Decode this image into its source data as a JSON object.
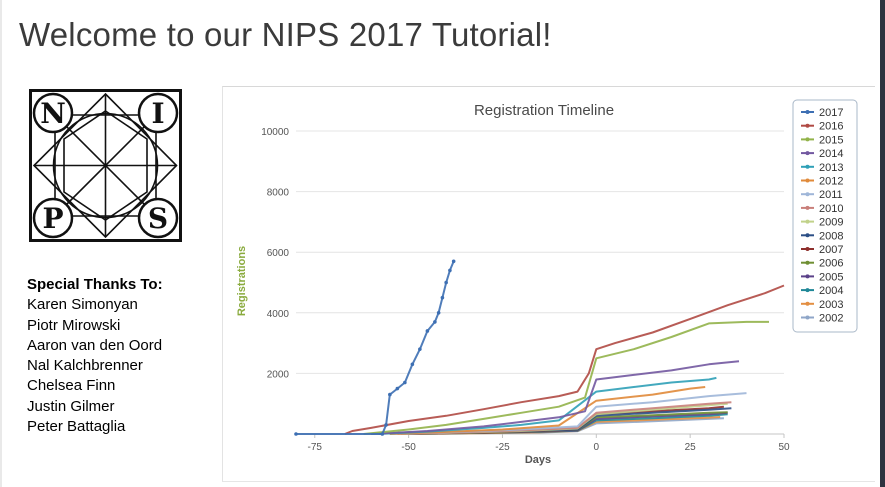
{
  "slide": {
    "title": "Welcome to our NIPS 2017 Tutorial!"
  },
  "logo": {
    "letters": [
      "N",
      "I",
      "P",
      "S"
    ]
  },
  "thanks": {
    "heading": "Special Thanks To:",
    "names": [
      "Karen Simonyan",
      "Piotr Mirowski",
      "Aaron van den Oord",
      "Nal Kalchbrenner",
      "Chelsea Finn",
      "Justin Gilmer",
      "Peter Battaglia"
    ]
  },
  "chart_data": {
    "type": "line",
    "title": "Registration Timeline",
    "xlabel": "Days",
    "ylabel": "Registrations",
    "xlim": [
      -80,
      50
    ],
    "ylim": [
      0,
      10000
    ],
    "xticks": [
      -75,
      -50,
      -25,
      0,
      25,
      50
    ],
    "yticks": [
      2000,
      4000,
      6000,
      8000,
      10000
    ],
    "legend_position": "right",
    "grid": "horizontal",
    "series": [
      {
        "name": "2017",
        "color": "#3d6fb3",
        "points": [
          [
            -80,
            0
          ],
          [
            -57,
            0
          ],
          [
            -56,
            300
          ],
          [
            -55,
            1300
          ],
          [
            -53,
            1500
          ],
          [
            -51,
            1700
          ],
          [
            -49,
            2300
          ],
          [
            -47,
            2800
          ],
          [
            -45,
            3400
          ],
          [
            -43,
            3700
          ],
          [
            -42,
            4000
          ],
          [
            -41,
            4500
          ],
          [
            -40,
            5000
          ],
          [
            -39,
            5400
          ],
          [
            -38,
            5700
          ]
        ]
      },
      {
        "name": "2016",
        "color": "#b04a44",
        "points": [
          [
            -67,
            0
          ],
          [
            -65,
            100
          ],
          [
            -60,
            200
          ],
          [
            -50,
            430
          ],
          [
            -40,
            600
          ],
          [
            -30,
            820
          ],
          [
            -20,
            1050
          ],
          [
            -10,
            1250
          ],
          [
            -5,
            1400
          ],
          [
            -2,
            2000
          ],
          [
            0,
            2800
          ],
          [
            5,
            3000
          ],
          [
            15,
            3350
          ],
          [
            25,
            3800
          ],
          [
            35,
            4250
          ],
          [
            45,
            4650
          ],
          [
            50,
            4900
          ]
        ]
      },
      {
        "name": "2015",
        "color": "#92b34a",
        "points": [
          [
            -62,
            0
          ],
          [
            -50,
            150
          ],
          [
            -40,
            300
          ],
          [
            -30,
            500
          ],
          [
            -20,
            700
          ],
          [
            -10,
            900
          ],
          [
            -3,
            1200
          ],
          [
            0,
            2500
          ],
          [
            10,
            2800
          ],
          [
            20,
            3200
          ],
          [
            30,
            3650
          ],
          [
            40,
            3700
          ],
          [
            46,
            3700
          ]
        ]
      },
      {
        "name": "2014",
        "color": "#7258a0",
        "points": [
          [
            -60,
            0
          ],
          [
            -45,
            100
          ],
          [
            -30,
            250
          ],
          [
            -20,
            400
          ],
          [
            -10,
            550
          ],
          [
            -3,
            750
          ],
          [
            0,
            1800
          ],
          [
            10,
            1950
          ],
          [
            20,
            2100
          ],
          [
            30,
            2300
          ],
          [
            38,
            2400
          ]
        ]
      },
      {
        "name": "2013",
        "color": "#2fa0b7",
        "points": [
          [
            -58,
            0
          ],
          [
            -45,
            80
          ],
          [
            -30,
            200
          ],
          [
            -20,
            300
          ],
          [
            -10,
            450
          ],
          [
            0,
            1400
          ],
          [
            10,
            1550
          ],
          [
            20,
            1700
          ],
          [
            30,
            1800
          ],
          [
            32,
            1850
          ]
        ]
      },
      {
        "name": "2012",
        "color": "#e08a3a",
        "points": [
          [
            -55,
            0
          ],
          [
            -40,
            70
          ],
          [
            -25,
            150
          ],
          [
            -10,
            280
          ],
          [
            0,
            1100
          ],
          [
            15,
            1300
          ],
          [
            25,
            1500
          ],
          [
            29,
            1550
          ]
        ]
      },
      {
        "name": "2011",
        "color": "#9fb6d8",
        "points": [
          [
            -55,
            0
          ],
          [
            -35,
            80
          ],
          [
            -20,
            150
          ],
          [
            -5,
            250
          ],
          [
            0,
            900
          ],
          [
            15,
            1050
          ],
          [
            30,
            1250
          ],
          [
            40,
            1350
          ]
        ]
      },
      {
        "name": "2010",
        "color": "#c97f7a",
        "points": [
          [
            -53,
            0
          ],
          [
            -35,
            60
          ],
          [
            -20,
            120
          ],
          [
            -5,
            200
          ],
          [
            0,
            700
          ],
          [
            15,
            850
          ],
          [
            30,
            1000
          ],
          [
            36,
            1050
          ]
        ]
      },
      {
        "name": "2009",
        "color": "#c1d28a",
        "points": [
          [
            -52,
            0
          ],
          [
            -35,
            50
          ],
          [
            -20,
            100
          ],
          [
            -5,
            180
          ],
          [
            0,
            650
          ],
          [
            15,
            800
          ],
          [
            30,
            950
          ],
          [
            35,
            1000
          ]
        ]
      },
      {
        "name": "2008",
        "color": "#2c4f86",
        "points": [
          [
            -52,
            0
          ],
          [
            -35,
            50
          ],
          [
            -20,
            90
          ],
          [
            -5,
            150
          ],
          [
            0,
            600
          ],
          [
            15,
            700
          ],
          [
            30,
            800
          ],
          [
            36,
            850
          ]
        ]
      },
      {
        "name": "2007",
        "color": "#8e2f2c",
        "points": [
          [
            -50,
            0
          ],
          [
            -30,
            50
          ],
          [
            -15,
            100
          ],
          [
            -5,
            150
          ],
          [
            0,
            650
          ],
          [
            15,
            750
          ],
          [
            30,
            850
          ],
          [
            34,
            900
          ]
        ]
      },
      {
        "name": "2006",
        "color": "#6f8f33",
        "points": [
          [
            -50,
            0
          ],
          [
            -30,
            40
          ],
          [
            -15,
            90
          ],
          [
            -5,
            140
          ],
          [
            0,
            550
          ],
          [
            15,
            620
          ],
          [
            30,
            700
          ],
          [
            35,
            720
          ]
        ]
      },
      {
        "name": "2005",
        "color": "#5b4189",
        "points": [
          [
            -50,
            0
          ],
          [
            -30,
            40
          ],
          [
            -15,
            80
          ],
          [
            -5,
            120
          ],
          [
            0,
            500
          ],
          [
            15,
            580
          ],
          [
            30,
            650
          ],
          [
            35,
            700
          ]
        ]
      },
      {
        "name": "2004",
        "color": "#1f8797",
        "points": [
          [
            -50,
            0
          ],
          [
            -30,
            40
          ],
          [
            -15,
            70
          ],
          [
            -5,
            110
          ],
          [
            0,
            450
          ],
          [
            15,
            520
          ],
          [
            30,
            600
          ],
          [
            35,
            650
          ]
        ]
      },
      {
        "name": "2003",
        "color": "#e38f42",
        "points": [
          [
            -50,
            0
          ],
          [
            -30,
            30
          ],
          [
            -15,
            60
          ],
          [
            -5,
            100
          ],
          [
            0,
            400
          ],
          [
            15,
            470
          ],
          [
            30,
            540
          ],
          [
            33,
            560
          ]
        ]
      },
      {
        "name": "2002",
        "color": "#8fa6c8",
        "points": [
          [
            -50,
            0
          ],
          [
            -30,
            30
          ],
          [
            -15,
            50
          ],
          [
            -5,
            90
          ],
          [
            0,
            350
          ],
          [
            15,
            420
          ],
          [
            30,
            500
          ],
          [
            34,
            520
          ]
        ]
      }
    ]
  }
}
